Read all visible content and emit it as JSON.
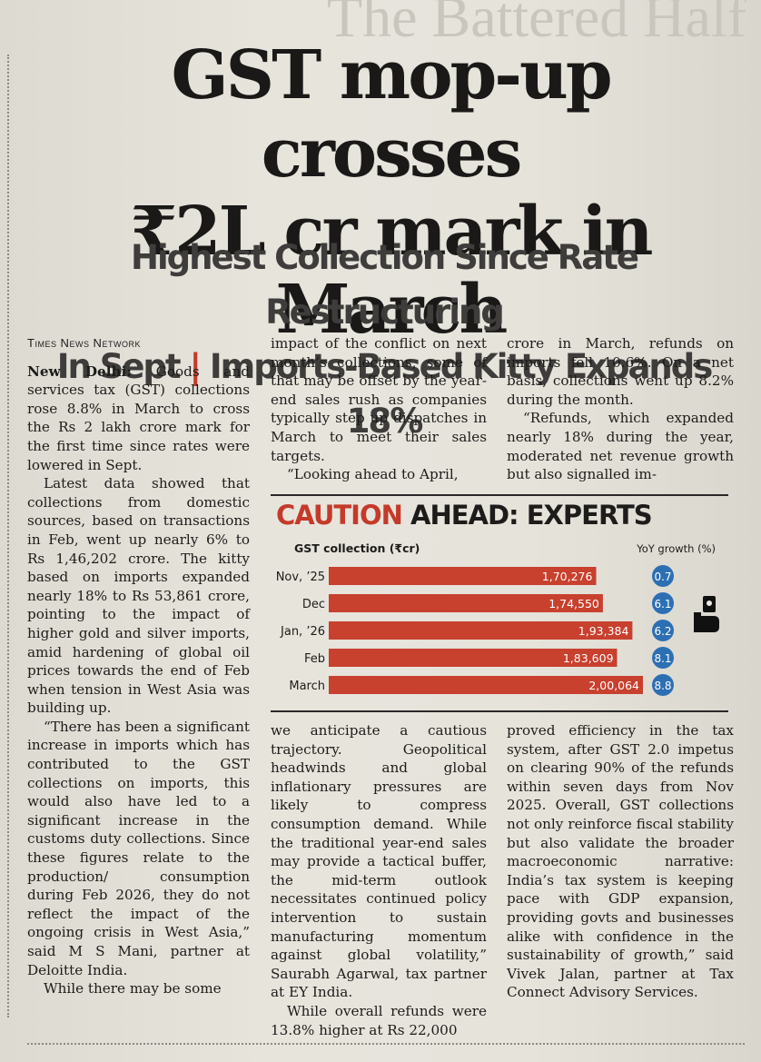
{
  "header": {
    "ghost": "The Battered Half",
    "headline_line1": "GST mop-up crosses",
    "headline_line2": "₹2L cr mark in March",
    "subhead_part1": "Highest Collection Since Rate Restructuring",
    "subhead_part2": "In Sept",
    "subhead_sep": "|",
    "subhead_part3": "Imports-Based Kitty Expands 18%"
  },
  "article": {
    "byline": "Times News Network",
    "dateline": "New Delhi:",
    "p1": "Goods and services tax (GST) collections rose 8.8% in March to cross the Rs 2 lakh crore mark for the first time since rates were lowered in Sept.",
    "p2": "Latest data showed that collections from domestic sources, based on transactions in Feb, went up nearly 6% to Rs 1,46,202 crore. The kitty based on imports expanded nearly 18% to Rs 53,861 crore, pointing to the impact of higher gold and silver imports, amid hardening of global oil prices towards the end of Feb when tension in West Asia was building up.",
    "p3": "“There has been a significant increase in imports which has contributed to the GST collections on imports, this would also have led to a significant increase in the customs duty collections. Since these figures relate to the production/ consumption during Feb 2026, they do not reflect the impact of the ongoing crisis in West Asia,” said M S Mani, partner at Deloitte India.",
    "p4": "While there may be some",
    "c2_top": "impact of the conflict on next month’s collections, some of that may be offset by the year-end sales rush as companies typically step up dispatches in March to meet their sales targets.",
    "c2_top2": "“Looking ahead to April,",
    "c3_top": "crore in March, refunds on imports fell 10.6%. On a net basis, collections went up 8.2% during the month.",
    "c3_top2": "“Refunds, which expanded nearly 18% during the year, moderated net revenue growth but also signalled im-",
    "c2_bottom": "we anticipate a cautious trajectory. Geopolitical headwinds and global inflationary pressures are likely to compress consumption demand. While the traditional year-end sales may provide a tactical buffer, the mid-term outlook necessitates continued policy intervention to sustain manufacturing momentum against global volatility,” Saurabh Agarwal, tax partner at EY India.",
    "c2_bottom2": "While overall refunds were 13.8% higher at Rs 22,000",
    "c3_bottom": "proved efficiency in the tax system, after GST 2.0 impetus on clearing 90% of the refunds within seven days from Nov 2025. Overall, GST collections not only reinforce fiscal stability but also validate the broader macroeconomic narrative: India’s tax system is keeping pace with GDP expansion, providing govts and businesses alike with confidence in the sustainability of growth,” said Vivek Jalan, partner at Tax Connect Advisory Services."
  },
  "colors": {
    "bar": "#c8402e",
    "bar_dark": "#a8301f",
    "bubble": "#2d6fb3",
    "accent": "#c43a2a"
  },
  "icons": {
    "chart": "hand-holding-tag-icon"
  },
  "chart_data": {
    "type": "bar",
    "title_red": "CAUTION",
    "title_rest": "AHEAD: EXPERTS",
    "left_label": "GST collection (₹cr)",
    "right_label": "YoY growth (%)",
    "categories": [
      "Nov, ’25",
      "Dec",
      "Jan, ’26",
      "Feb",
      "March"
    ],
    "values": [
      170276,
      174550,
      193384,
      183609,
      200064
    ],
    "value_labels": [
      "1,70,276",
      "1,74,550",
      "1,93,384",
      "1,83,609",
      "2,00,064"
    ],
    "growth": [
      "0.7",
      "6.1",
      "6.2",
      "8.1",
      "8.8"
    ],
    "xlim": [
      0,
      200064
    ]
  }
}
